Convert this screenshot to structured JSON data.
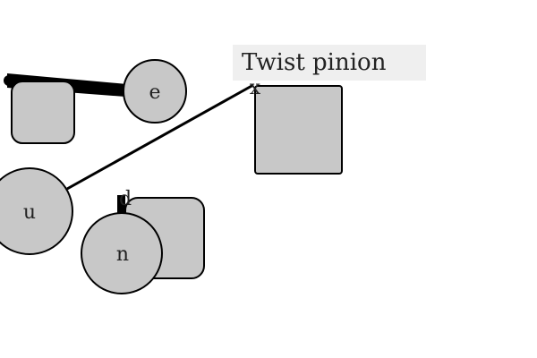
{
  "title": "Twist pinion",
  "colors": {
    "shape_fill": "#c8c8c8",
    "stroke": "#000000",
    "title_bg": "#efefef",
    "text": "#222222"
  },
  "nodes": {
    "e": "e",
    "u": "u",
    "n": "n",
    "d": "d",
    "x": "x"
  }
}
